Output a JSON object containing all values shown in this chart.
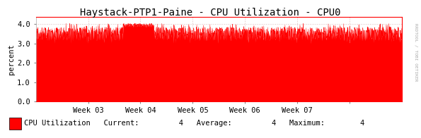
{
  "title": "Haystack-PTP1-Paine - CPU Utilization - CPU0",
  "ylabel": "percent",
  "right_label": "RRDTOOL / TOBI OETIKER",
  "ylim": [
    0.0,
    4.4
  ],
  "yticks": [
    0.0,
    1.0,
    2.0,
    3.0,
    4.0
  ],
  "xlim": [
    0,
    2016
  ],
  "xtick_positions": [
    288,
    576,
    864,
    1152,
    1440,
    1728
  ],
  "xtick_labels": [
    "Week 03",
    "Week 04",
    "Week 05",
    "Week 06",
    "Week 07",
    ""
  ],
  "fill_color": "#FF0000",
  "line_color": "#FF0000",
  "background_color": "#FFFFFF",
  "plot_bg_color": "#FFFFFF",
  "grid_color": "#DDBBBB",
  "title_fontsize": 10,
  "axis_fontsize": 7.5,
  "legend_label": "CPU Utilization",
  "legend_current": "4",
  "legend_average": "4",
  "legend_maximum": "4",
  "base_value": 3.5,
  "noise_amplitude": 0.35,
  "num_points": 2016
}
